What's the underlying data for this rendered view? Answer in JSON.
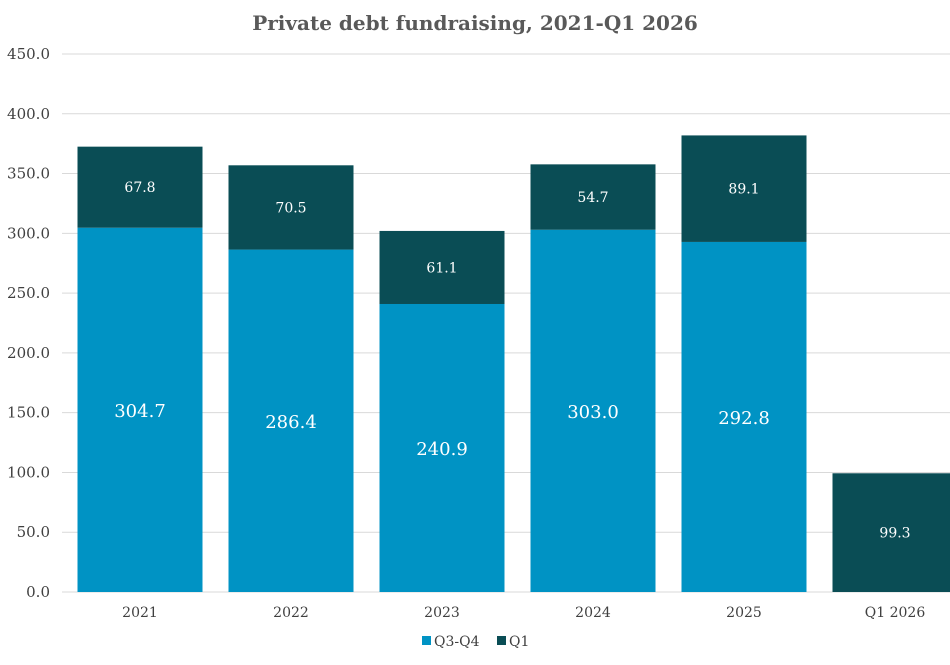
{
  "chart_data": {
    "type": "bar",
    "stacked": true,
    "title": "Private debt fundraising, 2021-Q1 2026",
    "xlabel": "",
    "ylabel": "",
    "ylim": [
      0,
      450
    ],
    "yticks": [
      "0.0",
      "50.0",
      "100.0",
      "150.0",
      "200.0",
      "250.0",
      "300.0",
      "350.0",
      "400.0",
      "450.0"
    ],
    "categories": [
      "2021",
      "2022",
      "2023",
      "2024",
      "2025",
      "Q1 2026"
    ],
    "series": [
      {
        "name": "Q3-Q4",
        "color": "#0093c4",
        "values": [
          304.7,
          286.4,
          240.9,
          303.0,
          292.8,
          null
        ],
        "labels": [
          "304.7",
          "286.4",
          "240.9",
          "303.0",
          "292.8",
          null
        ]
      },
      {
        "name": "Q1",
        "color": "#0a4d55",
        "values": [
          67.8,
          70.5,
          61.1,
          54.7,
          89.1,
          99.3
        ],
        "labels": [
          "67.8",
          "70.5",
          "61.1",
          "54.7",
          "89.1",
          "99.3"
        ]
      }
    ],
    "legend": {
      "position": "bottom",
      "items": [
        "Q3-Q4",
        "Q1"
      ]
    },
    "grid": true
  }
}
